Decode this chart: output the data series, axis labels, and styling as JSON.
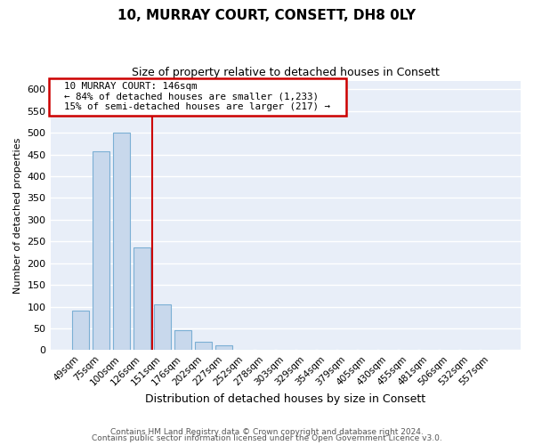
{
  "title": "10, MURRAY COURT, CONSETT, DH8 0LY",
  "subtitle": "Size of property relative to detached houses in Consett",
  "xlabel": "Distribution of detached houses by size in Consett",
  "ylabel": "Number of detached properties",
  "bar_labels": [
    "49sqm",
    "75sqm",
    "100sqm",
    "126sqm",
    "151sqm",
    "176sqm",
    "202sqm",
    "227sqm",
    "252sqm",
    "278sqm",
    "303sqm",
    "329sqm",
    "354sqm",
    "379sqm",
    "405sqm",
    "430sqm",
    "455sqm",
    "481sqm",
    "506sqm",
    "532sqm",
    "557sqm"
  ],
  "bar_values": [
    90,
    457,
    500,
    237,
    105,
    45,
    20,
    10,
    1,
    0,
    0,
    0,
    0,
    0,
    0,
    0,
    0,
    0,
    0,
    0,
    1
  ],
  "bar_fill_color": "#c8d8ec",
  "bar_edge_color": "#7bafd4",
  "ylim": [
    0,
    620
  ],
  "yticks": [
    0,
    50,
    100,
    150,
    200,
    250,
    300,
    350,
    400,
    450,
    500,
    550,
    600
  ],
  "vline_x": 3.5,
  "vline_color": "#cc0000",
  "annotation_title": "10 MURRAY COURT: 146sqm",
  "annotation_line1": "← 84% of detached houses are smaller (1,233)",
  "annotation_line2": "15% of semi-detached houses are larger (217) →",
  "annotation_box_facecolor": "#ffffff",
  "annotation_box_edgecolor": "#cc0000",
  "footnote1": "Contains HM Land Registry data © Crown copyright and database right 2024.",
  "footnote2": "Contains public sector information licensed under the Open Government Licence v3.0.",
  "fig_bg_color": "#ffffff",
  "plot_bg_color": "#e8eef8",
  "grid_color": "#ffffff",
  "title_fontsize": 11,
  "subtitle_fontsize": 9
}
